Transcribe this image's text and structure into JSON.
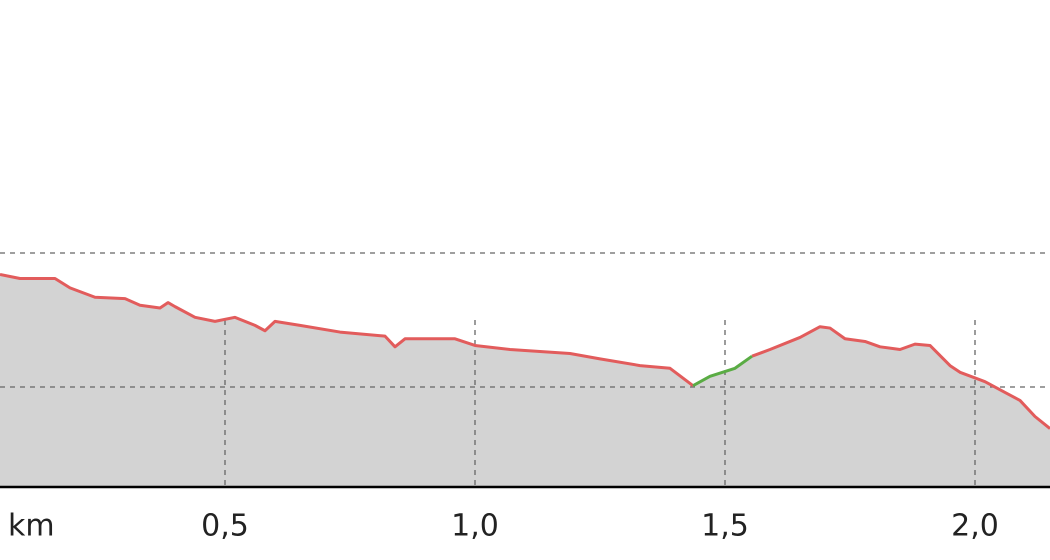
{
  "chart_data": {
    "type": "area",
    "x_label": "km",
    "x": [
      0.05,
      0.09,
      0.16,
      0.19,
      0.24,
      0.3,
      0.33,
      0.37,
      0.386,
      0.4,
      0.44,
      0.48,
      0.52,
      0.56,
      0.58,
      0.6,
      0.65,
      0.73,
      0.82,
      0.84,
      0.86,
      0.96,
      1.0,
      1.07,
      1.19,
      1.25,
      1.33,
      1.39,
      1.436,
      1.47,
      1.52,
      1.554,
      1.59,
      1.65,
      1.69,
      1.71,
      1.74,
      1.78,
      1.81,
      1.85,
      1.88,
      1.91,
      1.95,
      1.97,
      2.02,
      2.06,
      2.09,
      2.12,
      2.15
    ],
    "series": [
      {
        "color": "#e25c5c",
        "values": [
          28.4,
          28.1,
          28.1,
          27.4,
          26.7,
          26.6,
          26.1,
          25.9,
          26.3,
          26.0,
          25.2,
          24.9,
          25.2,
          24.6,
          24.2,
          24.9,
          24.6,
          24.1,
          23.8,
          23.0,
          23.6,
          23.6,
          23.1,
          22.8,
          22.5,
          22.1,
          21.6,
          21.4,
          20.1,
          null,
          null,
          22.3,
          22.8,
          23.7,
          24.5,
          24.4,
          23.6,
          23.4,
          23.0,
          22.8,
          23.2,
          23.1,
          21.6,
          21.1,
          20.4,
          19.6,
          19.0,
          17.8,
          16.9
        ]
      },
      {
        "color": "#5aac44",
        "values": [
          null,
          null,
          null,
          null,
          null,
          null,
          null,
          null,
          null,
          null,
          null,
          null,
          null,
          null,
          null,
          null,
          null,
          null,
          null,
          null,
          null,
          null,
          null,
          null,
          null,
          null,
          null,
          null,
          20.1,
          20.8,
          21.4,
          22.3,
          null,
          null,
          null,
          null,
          null,
          null,
          null,
          null,
          null,
          null,
          null,
          null,
          null,
          null,
          null,
          null,
          null
        ]
      }
    ],
    "fill_color": "#d3d3d3",
    "xlim": [
      0.05,
      2.15
    ],
    "xticks": [
      {
        "value": 0.5,
        "label": "0,5"
      },
      {
        "value": 1.0,
        "label": "1,0"
      },
      {
        "value": 1.5,
        "label": "1,5"
      },
      {
        "value": 2.0,
        "label": "2,0"
      }
    ],
    "ylim": [
      12.54,
      48.88
    ],
    "yticks": [
      20,
      30
    ],
    "grid": true
  }
}
